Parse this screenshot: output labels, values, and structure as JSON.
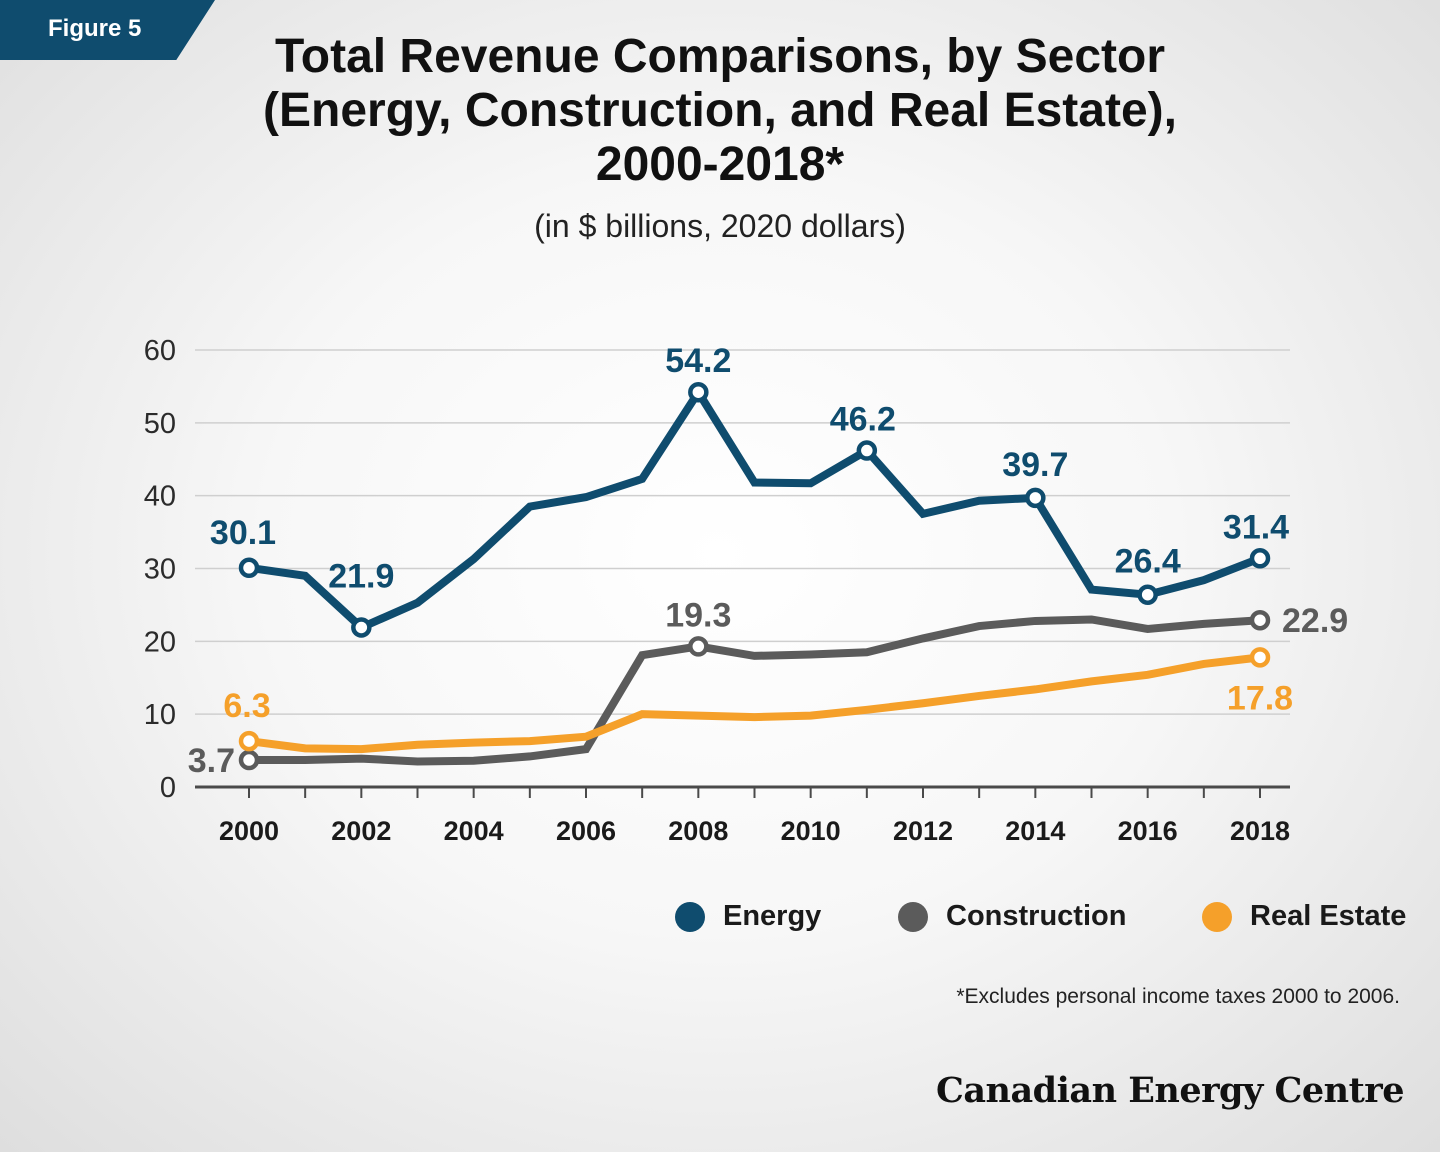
{
  "badge": {
    "label": "Figure 5"
  },
  "title_lines": [
    "Total Revenue Comparisons, by Sector",
    "(Energy, Construction, and Real Estate),",
    "2000-2018*"
  ],
  "subtitle": "(in $ billions, 2020 dollars)",
  "footnote": "*Excludes personal income taxes 2000 to 2006.",
  "logo": "Canadian Energy Centre",
  "colors": {
    "energy": "#0f4c6e",
    "construction": "#5b5b5b",
    "real_estate": "#f5a02a",
    "badge": "#0f4c6e"
  },
  "chart_data": {
    "type": "line",
    "x": [
      2000,
      2001,
      2002,
      2003,
      2004,
      2005,
      2006,
      2007,
      2008,
      2009,
      2010,
      2011,
      2012,
      2013,
      2014,
      2015,
      2016,
      2017,
      2018
    ],
    "x_tick_labels": [
      "2000",
      "2002",
      "2004",
      "2006",
      "2008",
      "2010",
      "2012",
      "2014",
      "2016",
      "2018"
    ],
    "y_tick_labels": [
      "0",
      "10",
      "20",
      "30",
      "40",
      "50",
      "60"
    ],
    "ylim": [
      0,
      60
    ],
    "grid": true,
    "legend_position": "bottom-right",
    "series": [
      {
        "name": "Energy",
        "color": "#0f4c6e",
        "values": [
          30.1,
          29.0,
          21.9,
          25.3,
          31.3,
          38.5,
          39.8,
          42.3,
          54.2,
          41.8,
          41.7,
          46.2,
          37.5,
          39.3,
          39.7,
          27.1,
          26.4,
          28.4,
          31.4
        ],
        "labels": [
          {
            "year": 2000,
            "text": "30.1"
          },
          {
            "year": 2002,
            "text": "21.9"
          },
          {
            "year": 2008,
            "text": "54.2"
          },
          {
            "year": 2011,
            "text": "46.2"
          },
          {
            "year": 2014,
            "text": "39.7"
          },
          {
            "year": 2016,
            "text": "26.4"
          },
          {
            "year": 2018,
            "text": "31.4"
          }
        ]
      },
      {
        "name": "Construction",
        "color": "#5b5b5b",
        "values": [
          3.7,
          3.7,
          3.9,
          3.5,
          3.6,
          4.2,
          5.2,
          18.1,
          19.3,
          18.0,
          18.2,
          18.5,
          20.4,
          22.1,
          22.8,
          23.0,
          21.7,
          22.4,
          22.9
        ],
        "labels": [
          {
            "year": 2000,
            "text": "3.7"
          },
          {
            "year": 2008,
            "text": "19.3"
          },
          {
            "year": 2018,
            "text": "22.9"
          }
        ]
      },
      {
        "name": "Real Estate",
        "color": "#f5a02a",
        "values": [
          6.3,
          5.3,
          5.2,
          5.8,
          6.1,
          6.3,
          6.9,
          10.0,
          9.8,
          9.6,
          9.8,
          10.6,
          11.5,
          12.5,
          13.4,
          14.5,
          15.4,
          16.9,
          17.8
        ],
        "labels": [
          {
            "year": 2000,
            "text": "6.3"
          },
          {
            "year": 2018,
            "text": "17.8"
          }
        ]
      }
    ]
  }
}
